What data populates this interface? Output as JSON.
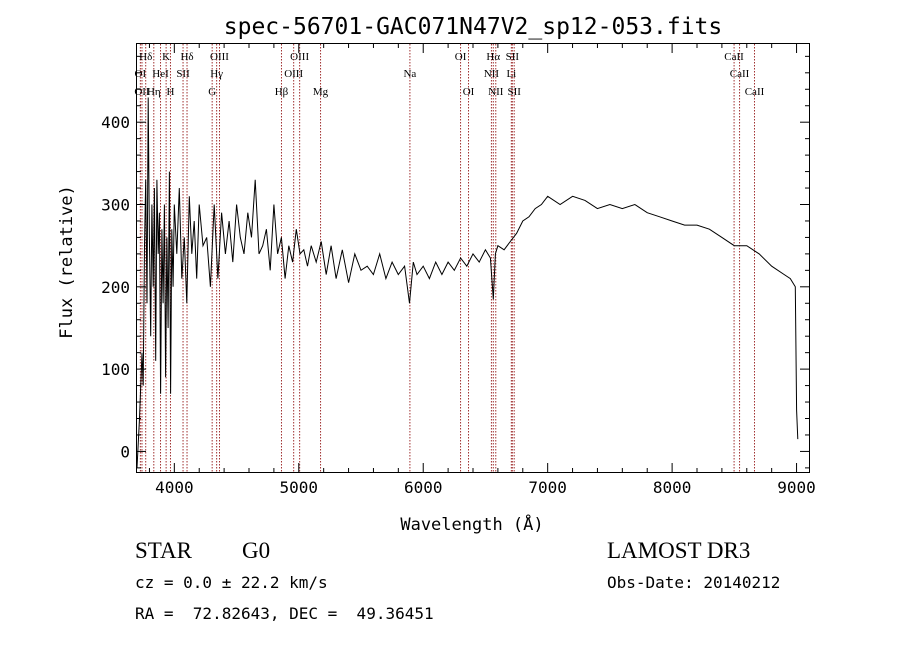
{
  "chart_data": {
    "type": "line",
    "title": "spec-56701-GAC071N47V2_sp12-053.fits",
    "xlabel": "Wavelength (Å)",
    "ylabel": "Flux (relative)",
    "xlim": [
      3700,
      9100
    ],
    "ylim": [
      -25,
      495
    ],
    "xticks": [
      4000,
      5000,
      6000,
      7000,
      8000,
      9000
    ],
    "yticks": [
      0,
      100,
      200,
      300,
      400
    ],
    "series": [
      {
        "name": "flux",
        "x": [
          3700,
          3720,
          3740,
          3750,
          3760,
          3770,
          3780,
          3790,
          3800,
          3810,
          3820,
          3830,
          3840,
          3850,
          3860,
          3870,
          3880,
          3890,
          3900,
          3910,
          3920,
          3930,
          3940,
          3950,
          3960,
          3970,
          3980,
          3990,
          4000,
          4020,
          4040,
          4060,
          4080,
          4100,
          4120,
          4140,
          4160,
          4180,
          4200,
          4230,
          4260,
          4290,
          4320,
          4350,
          4380,
          4410,
          4440,
          4470,
          4500,
          4530,
          4560,
          4590,
          4620,
          4650,
          4680,
          4710,
          4740,
          4770,
          4800,
          4830,
          4860,
          4890,
          4920,
          4950,
          4980,
          5010,
          5040,
          5070,
          5100,
          5140,
          5180,
          5220,
          5260,
          5300,
          5350,
          5400,
          5450,
          5500,
          5550,
          5600,
          5650,
          5700,
          5750,
          5800,
          5850,
          5890,
          5920,
          5950,
          6000,
          6050,
          6100,
          6150,
          6200,
          6250,
          6300,
          6350,
          6400,
          6450,
          6500,
          6540,
          6563,
          6580,
          6600,
          6650,
          6700,
          6750,
          6800,
          6850,
          6900,
          6950,
          7000,
          7100,
          7200,
          7300,
          7400,
          7500,
          7600,
          7700,
          7800,
          7900,
          8000,
          8100,
          8200,
          8300,
          8400,
          8500,
          8600,
          8700,
          8800,
          8900,
          8950,
          8990,
          9000,
          9010
        ],
        "values": [
          -20,
          40,
          120,
          80,
          250,
          330,
          180,
          430,
          260,
          140,
          300,
          200,
          320,
          110,
          330,
          240,
          290,
          70,
          270,
          180,
          300,
          90,
          260,
          150,
          340,
          70,
          270,
          200,
          300,
          240,
          320,
          210,
          260,
          180,
          310,
          240,
          280,
          210,
          300,
          250,
          260,
          200,
          300,
          210,
          290,
          240,
          280,
          230,
          300,
          260,
          240,
          290,
          260,
          330,
          240,
          250,
          270,
          220,
          300,
          240,
          260,
          210,
          250,
          230,
          270,
          240,
          245,
          225,
          250,
          230,
          255,
          215,
          250,
          210,
          245,
          205,
          240,
          220,
          225,
          215,
          240,
          210,
          230,
          215,
          225,
          180,
          230,
          215,
          225,
          210,
          230,
          215,
          230,
          220,
          235,
          225,
          240,
          230,
          245,
          235,
          185,
          240,
          250,
          245,
          255,
          265,
          280,
          285,
          295,
          300,
          310,
          300,
          310,
          305,
          295,
          300,
          295,
          300,
          290,
          285,
          280,
          275,
          275,
          270,
          260,
          250,
          250,
          240,
          225,
          215,
          210,
          200,
          50,
          15
        ]
      }
    ],
    "lines": [
      {
        "label": "Hδ",
        "wl": 3770,
        "row": 0
      },
      {
        "label": "K",
        "wl": 3934,
        "row": 0
      },
      {
        "label": "Hδ",
        "wl": 4102,
        "row": 0
      },
      {
        "label": "OIII",
        "wl": 4363,
        "row": 0
      },
      {
        "label": "OIII",
        "wl": 5007,
        "row": 0
      },
      {
        "label": "OI",
        "wl": 6300,
        "row": 0
      },
      {
        "label": "Hα",
        "wl": 6563,
        "row": 0
      },
      {
        "label": "SII",
        "wl": 6716,
        "row": 0
      },
      {
        "label": "CaII",
        "wl": 8498,
        "row": 0
      },
      {
        "label": "OI",
        "wl": 3727,
        "row": 1
      },
      {
        "label": "HeI",
        "wl": 3889,
        "row": 1
      },
      {
        "label": "SII",
        "wl": 4070,
        "row": 1
      },
      {
        "label": "Hγ",
        "wl": 4340,
        "row": 1
      },
      {
        "label": "OIII",
        "wl": 4959,
        "row": 1
      },
      {
        "label": "Na",
        "wl": 5893,
        "row": 1
      },
      {
        "label": "NII",
        "wl": 6548,
        "row": 1
      },
      {
        "label": "Li",
        "wl": 6708,
        "row": 1
      },
      {
        "label": "CaII",
        "wl": 8542,
        "row": 1
      },
      {
        "label": "OII",
        "wl": 3740,
        "row": 2
      },
      {
        "label": "Hη",
        "wl": 3835,
        "row": 2
      },
      {
        "label": "H",
        "wl": 3969,
        "row": 2
      },
      {
        "label": "G",
        "wl": 4304,
        "row": 2
      },
      {
        "label": "Hβ",
        "wl": 4861,
        "row": 2
      },
      {
        "label": "Mg",
        "wl": 5175,
        "row": 2
      },
      {
        "label": "OI",
        "wl": 6364,
        "row": 2
      },
      {
        "label": "NII",
        "wl": 6583,
        "row": 2
      },
      {
        "label": "SII",
        "wl": 6731,
        "row": 2
      },
      {
        "label": "CaII",
        "wl": 8662,
        "row": 2
      }
    ]
  },
  "info": {
    "class": "STAR",
    "subclass": "G0",
    "survey": "LAMOST DR3",
    "cz": "cz = 0.0 ± 22.2 km/s",
    "obsdate": "Obs-Date: 20140212",
    "coords": "RA =  72.82643, DEC =  49.36451"
  }
}
